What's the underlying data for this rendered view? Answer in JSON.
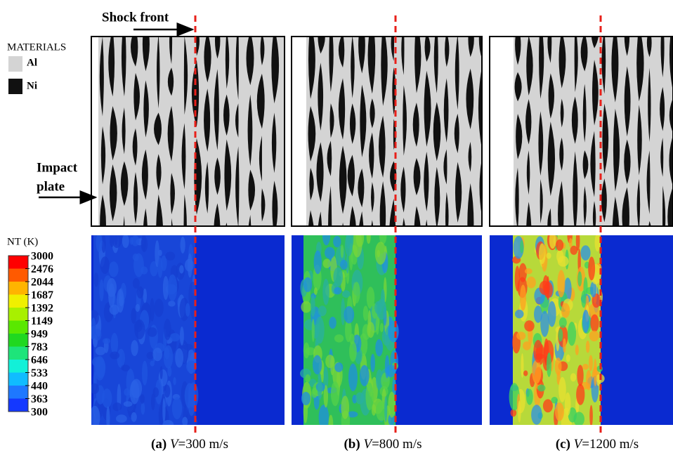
{
  "annotations": {
    "shock_front": "Shock front",
    "impact_line1": "Impact",
    "impact_line2": "plate"
  },
  "materials": {
    "title": "MATERIALS",
    "items": [
      "Al",
      "Ni"
    ]
  },
  "colorbar": {
    "title": "NT (K)",
    "ticks": [
      3000,
      2476,
      2044,
      1687,
      1392,
      1149,
      949,
      783,
      646,
      533,
      440,
      363,
      300
    ]
  },
  "panels": [
    {
      "label": "(a)",
      "variable": "V",
      "value": "=300 m/s"
    },
    {
      "label": "(b)",
      "variable": "V",
      "value": "=800 m/s"
    },
    {
      "label": "(c)",
      "variable": "V",
      "value": "=1200 m/s"
    }
  ]
}
